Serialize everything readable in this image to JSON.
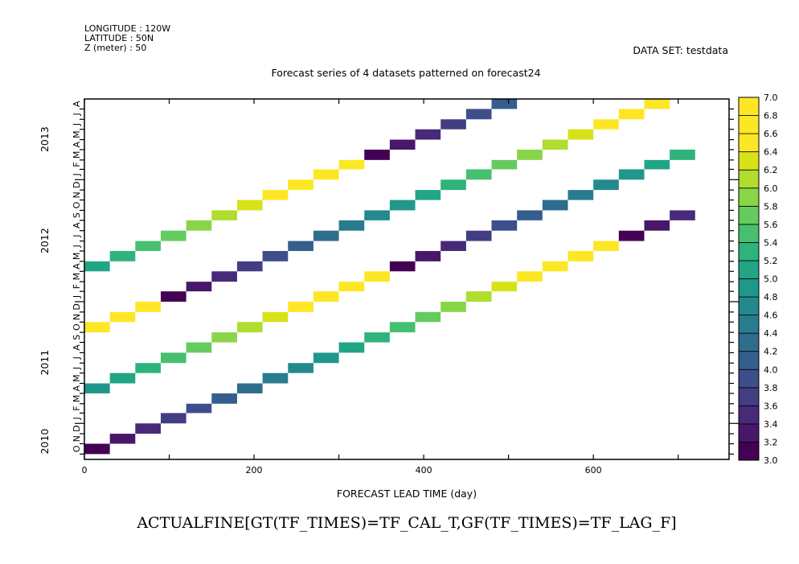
{
  "header": {
    "longitude": "LONGITUDE : 120W",
    "latitude": "LATITUDE : 50N",
    "z": "Z (meter) : 50",
    "dataset": "DATA SET: testdata"
  },
  "chart_data": {
    "type": "heatmap",
    "title": "Forecast series of 4 datasets patterned on forecast24",
    "xlabel": "FORECAST LEAD TIME (day)",
    "bottom_label": "ACTUALFINE[GT(TF_TIMES)=TF_CAL_T,GF(TF_TIMES)=TF_LAG_F]",
    "xlim": [
      0,
      760
    ],
    "x_ticks": [
      0,
      200,
      400,
      600
    ],
    "ylim": [
      "2010-09-15",
      "2013-08-31"
    ],
    "y_month_labels": [
      "O",
      "N",
      "D",
      "J",
      "F",
      "M",
      "A",
      "M",
      "J",
      "J",
      "A",
      "S",
      "O",
      "N",
      "D",
      "J",
      "F",
      "M",
      "A",
      "M",
      "J",
      "J",
      "A",
      "S",
      "O",
      "N",
      "D",
      "J",
      "F",
      "M",
      "A",
      "M",
      "J",
      "J",
      "A"
    ],
    "y_year_labels": [
      "2010",
      "2011",
      "2012",
      "2013"
    ],
    "cell_width_days": 30,
    "series": [
      {
        "values": [
          3.0,
          3.2,
          3.4,
          3.6,
          3.8,
          4.0,
          4.2,
          4.4,
          4.6,
          4.8,
          5.0,
          5.2,
          5.4,
          5.6,
          5.8,
          6.0,
          6.2,
          6.4,
          6.6,
          6.8,
          7.0,
          3.0,
          3.2,
          3.4
        ]
      },
      {
        "values": [
          4.8,
          5.0,
          5.2,
          5.4,
          5.6,
          5.8,
          6.0,
          6.2,
          6.4,
          6.6,
          6.8,
          7.0,
          3.0,
          3.2,
          3.4,
          3.6,
          3.8,
          4.0,
          4.2,
          4.4,
          4.6,
          4.8,
          5.0,
          5.2
        ]
      },
      {
        "values": [
          6.6,
          6.8,
          7.0,
          3.0,
          3.2,
          3.4,
          3.6,
          3.8,
          4.0,
          4.2,
          4.4,
          4.6,
          4.8,
          5.0,
          5.2,
          5.4,
          5.6,
          5.8,
          6.0,
          6.2,
          6.4,
          6.6,
          6.8,
          7.0
        ]
      },
      {
        "values": [
          5.0,
          5.2,
          5.4,
          5.6,
          5.8,
          6.0,
          6.2,
          6.4,
          6.6,
          6.8,
          7.0,
          3.0,
          3.2,
          3.4,
          3.6,
          3.8,
          4.0,
          4.2,
          4.4,
          4.6,
          4.8,
          5.0,
          5.2,
          5.4
        ]
      }
    ],
    "series_start_offsets": [
      0,
      6,
      12,
      18
    ],
    "colorbar": {
      "min": 3.0,
      "max": 7.0,
      "step": 0.2,
      "labels": [
        "3.0",
        "3.2",
        "3.4",
        "3.6",
        "3.8",
        "4.0",
        "4.2",
        "4.4",
        "4.6",
        "4.8",
        "5.0",
        "5.2",
        "5.4",
        "5.6",
        "5.8",
        "6.0",
        "6.2",
        "6.4",
        "6.6",
        "6.8",
        "7.0"
      ],
      "colors": [
        "#440154",
        "#481769",
        "#472a7a",
        "#433d84",
        "#3d4e8a",
        "#355e8d",
        "#2e6d8e",
        "#297b8e",
        "#23898e",
        "#1f978b",
        "#21a585",
        "#2eb37c",
        "#46c06f",
        "#65cb5e",
        "#89d548",
        "#b0dd2f",
        "#d8e219",
        "#fde725",
        "#fde725",
        "#fde725"
      ]
    }
  }
}
